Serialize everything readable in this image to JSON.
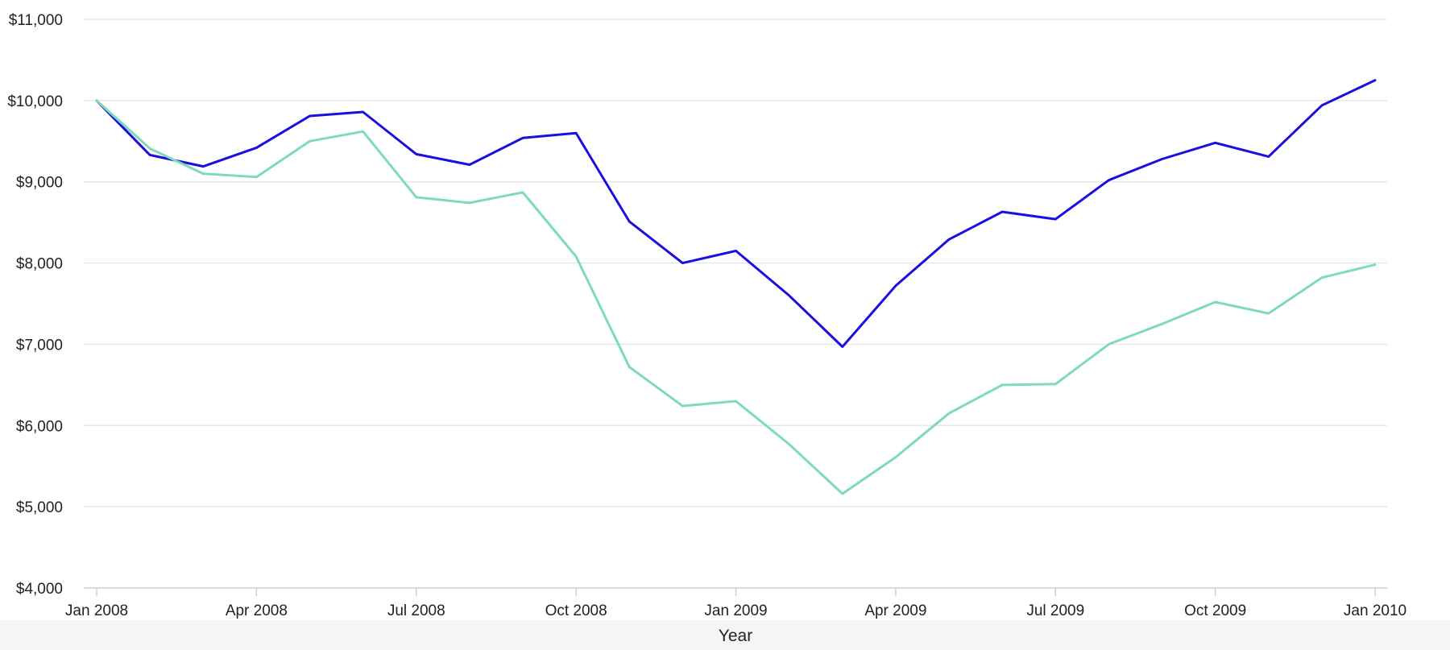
{
  "chart_data": {
    "type": "line",
    "xlabel": "Year",
    "ylabel": "",
    "ylim": [
      4000,
      11000
    ],
    "y_ticks": [
      "$4,000",
      "$5,000",
      "$6,000",
      "$7,000",
      "$8,000",
      "$9,000",
      "$10,000",
      "$11,000"
    ],
    "y_tick_values": [
      4000,
      5000,
      6000,
      7000,
      8000,
      9000,
      10000,
      11000
    ],
    "x": [
      "2008-01",
      "2008-02",
      "2008-03",
      "2008-04",
      "2008-05",
      "2008-06",
      "2008-07",
      "2008-08",
      "2008-09",
      "2008-10",
      "2008-11",
      "2008-12",
      "2009-01",
      "2009-02",
      "2009-03",
      "2009-04",
      "2009-05",
      "2009-06",
      "2009-07",
      "2009-08",
      "2009-09",
      "2009-10",
      "2009-11",
      "2009-12",
      "2010-01"
    ],
    "x_ticks": [
      {
        "label": "Jan 2008",
        "at": "2008-01"
      },
      {
        "label": "Apr 2008",
        "at": "2008-04"
      },
      {
        "label": "Jul 2008",
        "at": "2008-07"
      },
      {
        "label": "Oct 2008",
        "at": "2008-10"
      },
      {
        "label": "Jan 2009",
        "at": "2009-01"
      },
      {
        "label": "Apr 2009",
        "at": "2009-04"
      },
      {
        "label": "Jul 2009",
        "at": "2009-07"
      },
      {
        "label": "Oct 2009",
        "at": "2009-10"
      },
      {
        "label": "Jan 2010",
        "at": "2010-01"
      }
    ],
    "grid": true,
    "series": [
      {
        "color": "#1a0ee0",
        "values": [
          10000,
          9330,
          9190,
          9420,
          9810,
          9860,
          9340,
          9210,
          9540,
          9600,
          8510,
          8000,
          8150,
          7600,
          6970,
          7720,
          8290,
          8630,
          8540,
          9020,
          9280,
          9480,
          9310,
          9940,
          10250
        ]
      },
      {
        "color": "#7ddcb5",
        "values": [
          10000,
          9410,
          9100,
          9060,
          9500,
          9620,
          8810,
          8740,
          8870,
          8080,
          6720,
          6240,
          6300,
          5770,
          5160,
          5610,
          6150,
          6500,
          6510,
          7000,
          7250,
          7520,
          7380,
          7820,
          7980
        ]
      }
    ]
  }
}
